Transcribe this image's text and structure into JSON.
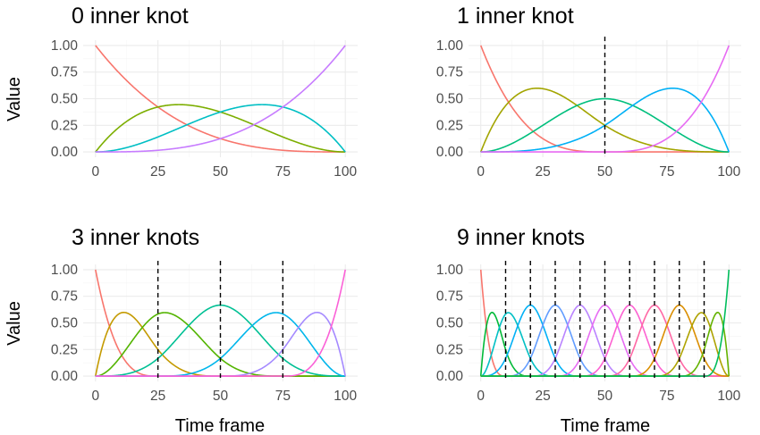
{
  "figure": {
    "ylabel": "Value",
    "xlabel": "Time frame"
  },
  "chart_data": [
    {
      "type": "line",
      "title": "0 inner knot",
      "x_range": [
        0,
        100
      ],
      "ylim": [
        0,
        1
      ],
      "x_ticks": [
        0,
        25,
        50,
        75,
        100
      ],
      "y_ticks": [
        "0.00",
        "0.25",
        "0.50",
        "0.75",
        "1.00"
      ],
      "grid": true,
      "inner_knots": [],
      "degree": 3,
      "series_colors": [
        "#F8766D",
        "#7CAE00",
        "#00BFC4",
        "#C77CFF"
      ],
      "description": "cubic B-spline basis, 4 functions"
    },
    {
      "type": "line",
      "title": "1 inner knot",
      "x_range": [
        0,
        100
      ],
      "ylim": [
        0,
        1
      ],
      "x_ticks": [
        0,
        25,
        50,
        75,
        100
      ],
      "y_ticks": [
        "0.00",
        "0.25",
        "0.50",
        "0.75",
        "1.00"
      ],
      "grid": true,
      "inner_knots": [
        50
      ],
      "degree": 3,
      "series_colors": [
        "#F8766D",
        "#A3A500",
        "#00BF7D",
        "#00B0F6",
        "#E76BF3"
      ],
      "description": "cubic B-spline basis, 5 functions"
    },
    {
      "type": "line",
      "title": "3 inner knots",
      "x_range": [
        0,
        100
      ],
      "ylim": [
        0,
        1
      ],
      "x_ticks": [
        0,
        25,
        50,
        75,
        100
      ],
      "y_ticks": [
        "0.00",
        "0.25",
        "0.50",
        "0.75",
        "1.00"
      ],
      "grid": true,
      "inner_knots": [
        25,
        50,
        75
      ],
      "degree": 3,
      "series_colors": [
        "#F8766D",
        "#C49A00",
        "#53B400",
        "#00C094",
        "#00B6EB",
        "#A58AFF",
        "#FB61D7"
      ],
      "description": "cubic B-spline basis, 7 functions"
    },
    {
      "type": "line",
      "title": "9 inner knots",
      "x_range": [
        0,
        100
      ],
      "ylim": [
        0,
        1
      ],
      "x_ticks": [
        0,
        25,
        50,
        75,
        100
      ],
      "y_ticks": [
        "0.00",
        "0.25",
        "0.50",
        "0.75",
        "1.00"
      ],
      "grid": true,
      "inner_knots": [
        10,
        20,
        30,
        40,
        50,
        60,
        70,
        80,
        90
      ],
      "degree": 3,
      "series_colors": [
        "#F8766D",
        "#00BA38",
        "#00BFC4",
        "#00B0F6",
        "#619CFF",
        "#B983FF",
        "#E76BF3",
        "#FD61D1",
        "#FF67A4",
        "#DB8E00",
        "#AEA200",
        "#64B200",
        "#00BD5C"
      ],
      "description": "cubic B-spline basis, 13 functions"
    }
  ]
}
